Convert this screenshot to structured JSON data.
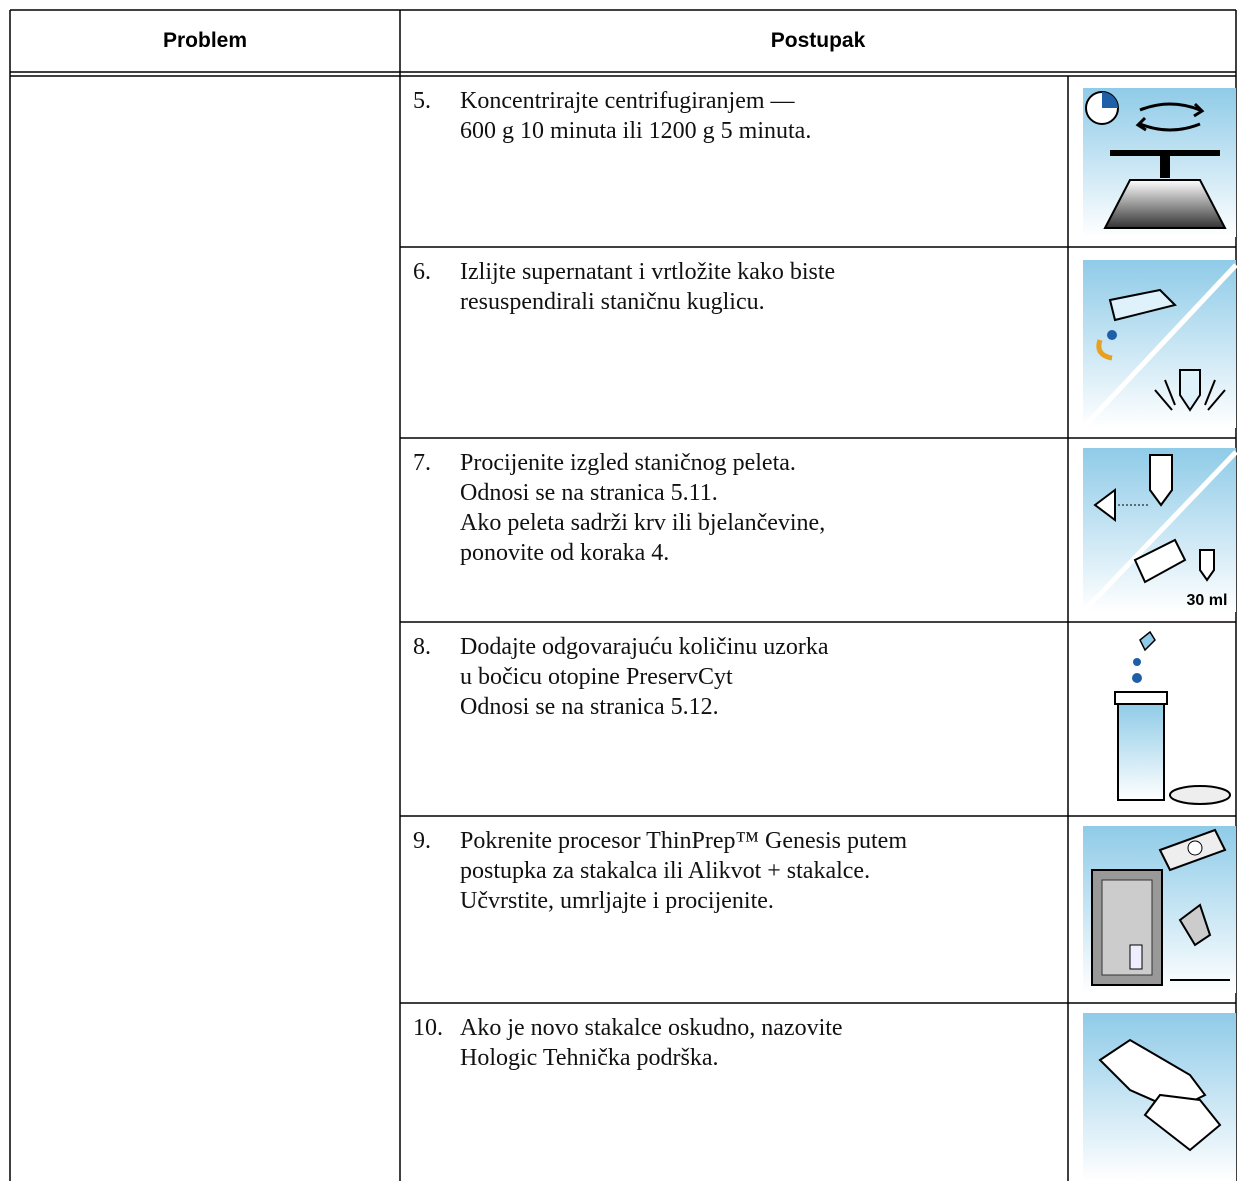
{
  "table": {
    "header": [
      "Problem",
      "Postupak"
    ],
    "rows": [
      {
        "number": "5.",
        "lines": [
          "Koncentrirajte centrifugiranjem —",
          "600 g 10 minuta ili 1200 g 5 minuta."
        ]
      },
      {
        "number": "6.",
        "lines": [
          "Izlijte supernatant i vrtložite kako biste",
          "resuspendirali staničnu kuglicu."
        ]
      },
      {
        "number": "7.",
        "lines": [
          "Procijenite izgled staničnog peleta.",
          "Odnosi se na stranica 5.11.",
          "Ako peleta sadrži krv ili bjelančevine,",
          "ponovite od koraka 4."
        ],
        "icon_label": "30 ml"
      },
      {
        "number": "8.",
        "lines": [
          "Dodajte odgovarajuću količinu uzorka",
          "u bočicu otopine PreservCyt",
          "Odnosi se na stranica 5.12."
        ]
      },
      {
        "number": "9.",
        "lines": [
          "Pokrenite procesor ThinPrep™ Genesis putem",
          "postupka za stakalca ili Alikvot + stakalce.",
          "Učvrstite, umrljajte i procijenite."
        ]
      },
      {
        "number": "10.",
        "lines": [
          "Ako je novo stakalce oskudno, nazovite",
          "Hologic Tehnička podrška."
        ]
      }
    ]
  }
}
